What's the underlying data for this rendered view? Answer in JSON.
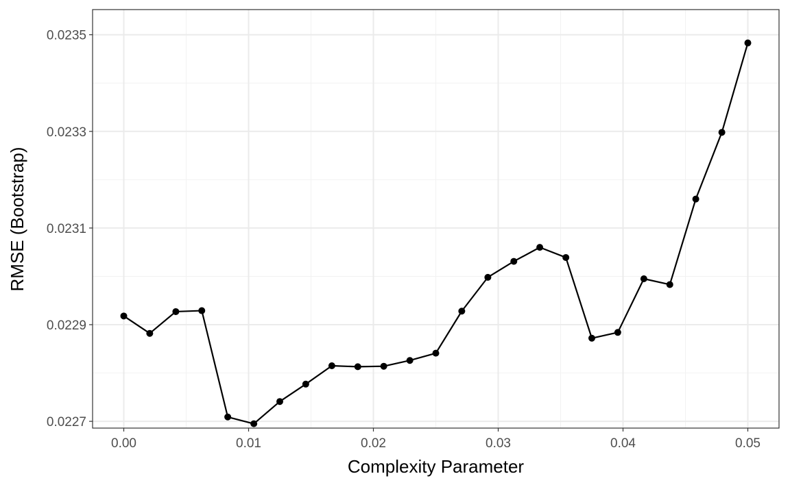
{
  "chart_data": {
    "type": "line",
    "xlabel": "Complexity Parameter",
    "ylabel": "RMSE (Bootstrap)",
    "xlim": [
      -0.0025,
      0.0525
    ],
    "ylim": [
      0.022686,
      0.023552
    ],
    "x_ticks": [
      0.0,
      0.01,
      0.02,
      0.03,
      0.04,
      0.05
    ],
    "x_tick_labels": [
      "0.00",
      "0.01",
      "0.02",
      "0.03",
      "0.04",
      "0.05"
    ],
    "y_ticks": [
      0.0227,
      0.0229,
      0.0231,
      0.0233,
      0.0235
    ],
    "y_tick_labels": [
      "0.0227",
      "0.0229",
      "0.0231",
      "0.0233",
      "0.0235"
    ],
    "grid": true,
    "legend": "none",
    "colors": {
      "line": "#000000",
      "points": "#000000",
      "grid_major": "#ebebeb",
      "grid_minor": "#f2f2f2",
      "panel_border": "#333333"
    },
    "x": [
      0.0,
      0.00208,
      0.00417,
      0.00625,
      0.00833,
      0.01042,
      0.0125,
      0.01458,
      0.01667,
      0.01875,
      0.02083,
      0.02292,
      0.025,
      0.02708,
      0.02917,
      0.03125,
      0.03333,
      0.03542,
      0.0375,
      0.03958,
      0.04167,
      0.04375,
      0.04583,
      0.04792,
      0.05
    ],
    "series": [
      {
        "values": [
          0.022918,
          0.022882,
          0.022927,
          0.022929,
          0.022709,
          0.022695,
          0.022741,
          0.022777,
          0.022815,
          0.022813,
          0.022814,
          0.022826,
          0.022841,
          0.022928,
          0.022998,
          0.023031,
          0.02306,
          0.023039,
          0.022872,
          0.022884,
          0.022995,
          0.022983,
          0.02316,
          0.023298,
          0.023483
        ]
      }
    ]
  }
}
